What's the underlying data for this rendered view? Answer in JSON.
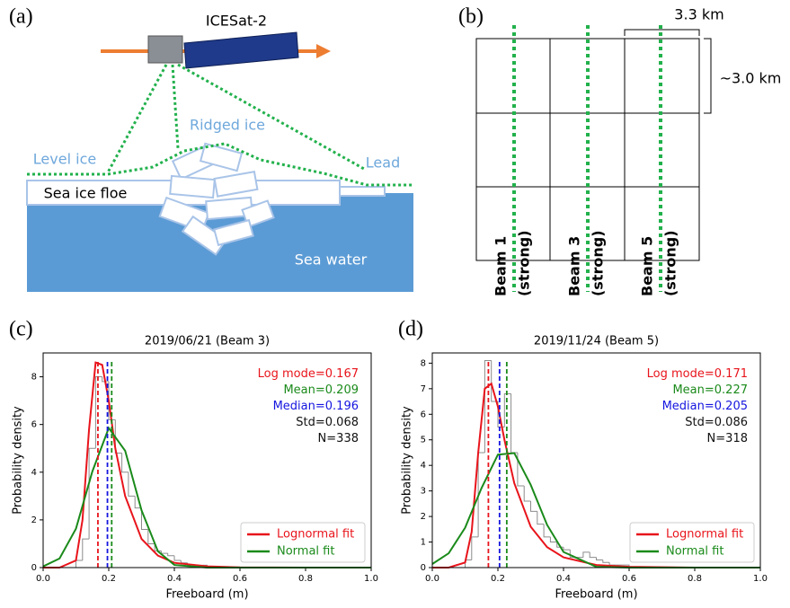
{
  "panel_a": {
    "label": "(a)",
    "satellite": "ICESat-2",
    "labels": {
      "ridged_ice": "Ridged ice",
      "level_ice": "Level ice",
      "lead": "Lead",
      "floe": "Sea ice floe",
      "water": "Sea water"
    }
  },
  "panel_b": {
    "label": "(b)",
    "width": "3.3 km",
    "height": "~3.0 km",
    "beams": [
      {
        "name": "Beam 1",
        "strength": "(strong)"
      },
      {
        "name": "Beam 3",
        "strength": "(strong)"
      },
      {
        "name": "Beam 5",
        "strength": "(strong)"
      }
    ]
  },
  "chart_data": [
    {
      "type": "histogram",
      "panel_label": "(c)",
      "title": "2019/06/21 (Beam 3)",
      "xlabel": "Freeboard (m)",
      "ylabel": "Probability density",
      "bins": [
        0.1,
        0.12,
        0.14,
        0.16,
        0.18,
        0.2,
        0.22,
        0.24,
        0.26,
        0.28,
        0.3,
        0.32,
        0.34,
        0.36,
        0.38,
        0.4,
        0.42,
        0.44,
        0.46,
        0.48,
        0.5
      ],
      "counts": [
        0.3,
        1.2,
        5.0,
        8.0,
        7.8,
        6.2,
        4.8,
        4.0,
        3.0,
        2.5,
        1.6,
        1.0,
        0.7,
        0.6,
        0.5,
        0.3,
        0.2,
        0.1,
        0.1,
        0.1
      ],
      "hist_color": "#8c8c8c",
      "series": [
        {
          "name": "Lognormal fit",
          "color": "#e8141b",
          "x": [
            0,
            0.05,
            0.1,
            0.12,
            0.14,
            0.16,
            0.18,
            0.2,
            0.22,
            0.25,
            0.3,
            0.35,
            0.4,
            0.5,
            0.6,
            0.8,
            1.0
          ],
          "values": [
            0,
            0,
            0.3,
            2.0,
            5.8,
            8.6,
            8.5,
            7.0,
            5.0,
            3.0,
            1.2,
            0.5,
            0.2,
            0.05,
            0.01,
            0,
            0
          ]
        },
        {
          "name": "Normal fit",
          "color": "#1a8a1a",
          "x": [
            0,
            0.05,
            0.1,
            0.15,
            0.2,
            0.25,
            0.3,
            0.35,
            0.4,
            0.5,
            0.6,
            0.8,
            1.0
          ],
          "values": [
            0.05,
            0.38,
            1.63,
            4.03,
            5.85,
            4.9,
            2.4,
            0.68,
            0.11,
            0,
            0,
            0,
            0
          ]
        }
      ],
      "annotations": [
        {
          "label": "Log mode=",
          "value": 0.167,
          "color": "#e8141b",
          "vline": true
        },
        {
          "label": "Mean=",
          "value": 0.209,
          "color": "#1a8a1a",
          "vline": true
        },
        {
          "label": "Median=",
          "value": 0.196,
          "color": "#1515e0",
          "vline": true
        },
        {
          "label": "Std=",
          "value": 0.068,
          "color": "#111111",
          "vline": false
        },
        {
          "label": "N=",
          "value": 338,
          "color": "#111111",
          "vline": false
        }
      ],
      "xlim": [
        0,
        1
      ],
      "xticks": [
        {
          "value": 0,
          "label": "0.0"
        },
        0.2,
        0.4,
        0.6,
        0.8,
        {
          "value": 1,
          "label": "1.0"
        }
      ],
      "ylim": [
        0,
        9
      ],
      "yticks": [
        0,
        2,
        4,
        6,
        8
      ],
      "legend": "lower right"
    },
    {
      "type": "histogram",
      "panel_label": "(d)",
      "title": "2019/11/24 (Beam 5)",
      "xlabel": "Freeboard (m)",
      "ylabel": "Probability density",
      "bins": [
        0.1,
        0.12,
        0.14,
        0.16,
        0.18,
        0.2,
        0.22,
        0.24,
        0.26,
        0.28,
        0.3,
        0.32,
        0.34,
        0.36,
        0.38,
        0.4,
        0.42,
        0.44,
        0.46,
        0.48,
        0.5,
        0.52,
        0.54,
        0.56,
        0.58,
        0.6
      ],
      "counts": [
        0.3,
        1.2,
        4.5,
        8.1,
        6.5,
        5.5,
        6.8,
        4.5,
        3.2,
        2.6,
        2.2,
        1.7,
        1.2,
        1.0,
        0.8,
        0.7,
        0.4,
        0.4,
        0.6,
        0.4,
        0.3,
        0.2,
        0.1,
        0.1,
        0.1
      ],
      "hist_color": "#8c8c8c",
      "series": [
        {
          "name": "Lognormal fit",
          "color": "#e8141b",
          "x": [
            0,
            0.05,
            0.1,
            0.12,
            0.14,
            0.16,
            0.18,
            0.2,
            0.22,
            0.25,
            0.3,
            0.35,
            0.4,
            0.5,
            0.6,
            0.8,
            1.0
          ],
          "values": [
            0,
            0,
            0.2,
            1.4,
            4.5,
            7.0,
            7.2,
            6.3,
            5.0,
            3.3,
            1.6,
            0.8,
            0.4,
            0.1,
            0.03,
            0,
            0
          ]
        },
        {
          "name": "Normal fit",
          "color": "#1a8a1a",
          "x": [
            0,
            0.05,
            0.1,
            0.15,
            0.2,
            0.25,
            0.3,
            0.35,
            0.4,
            0.5,
            0.6,
            0.8,
            1.0
          ],
          "values": [
            0.14,
            0.56,
            1.56,
            3.11,
            4.42,
            4.48,
            3.24,
            1.67,
            0.61,
            0.03,
            0,
            0,
            0
          ]
        }
      ],
      "annotations": [
        {
          "label": "Log mode=",
          "value": 0.171,
          "color": "#e8141b",
          "vline": true
        },
        {
          "label": "Mean=",
          "value": 0.227,
          "color": "#1a8a1a",
          "vline": true
        },
        {
          "label": "Median=",
          "value": 0.205,
          "color": "#1515e0",
          "vline": true
        },
        {
          "label": "Std=",
          "value": 0.086,
          "color": "#111111",
          "vline": false
        },
        {
          "label": "N=",
          "value": 318,
          "color": "#111111",
          "vline": false
        }
      ],
      "xlim": [
        0,
        1
      ],
      "xticks": [
        {
          "value": 0,
          "label": "0.0"
        },
        0.2,
        0.4,
        0.6,
        0.8,
        {
          "value": 1,
          "label": "1.0"
        }
      ],
      "ylim": [
        0,
        8.4
      ],
      "yticks": [
        0,
        1,
        2,
        3,
        4,
        5,
        6,
        7,
        8
      ],
      "legend": "lower right"
    }
  ]
}
